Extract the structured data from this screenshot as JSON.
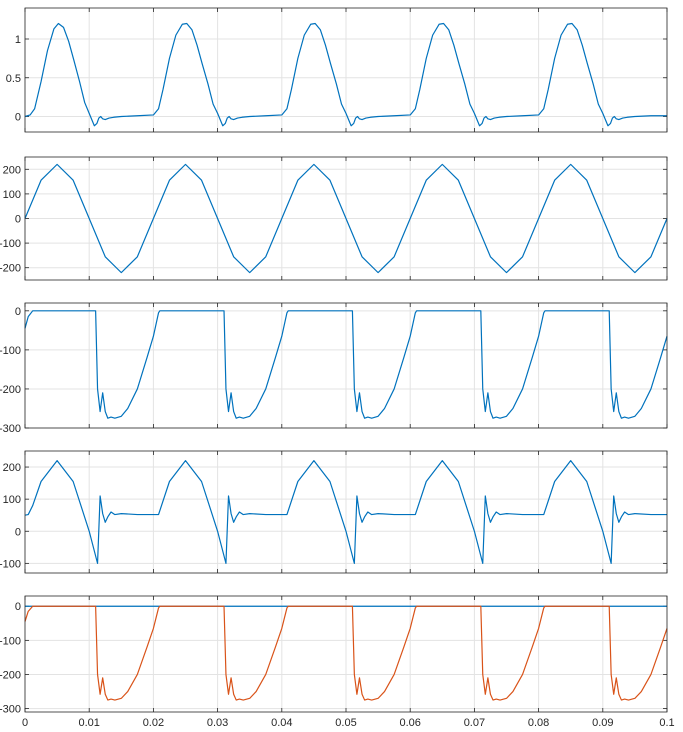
{
  "chart_data": [
    {
      "type": "line",
      "title": "",
      "xlabel": "",
      "ylabel": "",
      "xlim": [
        0,
        0.1
      ],
      "ylim": [
        -0.2,
        1.4
      ],
      "yticks": [
        0,
        0.5,
        1
      ],
      "ytick_labels": [
        "0",
        "0.5",
        "1"
      ],
      "grid": true,
      "series": [
        {
          "color": "#0072BD",
          "x": [
            0,
            0.0008,
            0.0015,
            0.0025,
            0.0035,
            0.0045,
            0.0052,
            0.006,
            0.0068,
            0.0076,
            0.0085,
            0.0093,
            0.01,
            0.0105,
            0.0108,
            0.0112,
            0.0115,
            0.0118,
            0.0121,
            0.0125,
            0.0131,
            0.0138,
            0.015,
            0.0175,
            0.02,
            0.0208,
            0.0215,
            0.0225,
            0.0235,
            0.0245,
            0.0252,
            0.026,
            0.0268,
            0.0276,
            0.0285,
            0.0293,
            0.03,
            0.0305,
            0.0308,
            0.0312,
            0.0315,
            0.0318,
            0.0321,
            0.0325,
            0.0331,
            0.0338,
            0.035,
            0.0375,
            0.04,
            0.0408,
            0.0415,
            0.0425,
            0.0435,
            0.0445,
            0.0452,
            0.046,
            0.0468,
            0.0476,
            0.0485,
            0.0493,
            0.05,
            0.0505,
            0.0508,
            0.0512,
            0.0515,
            0.0518,
            0.0521,
            0.0525,
            0.0531,
            0.0538,
            0.055,
            0.0575,
            0.06,
            0.0608,
            0.0615,
            0.0625,
            0.0635,
            0.0645,
            0.0652,
            0.066,
            0.0668,
            0.0676,
            0.0685,
            0.0693,
            0.07,
            0.0705,
            0.0708,
            0.0712,
            0.0715,
            0.0718,
            0.0721,
            0.0725,
            0.0731,
            0.0738,
            0.075,
            0.0775,
            0.08,
            0.0808,
            0.0815,
            0.0825,
            0.0835,
            0.0845,
            0.0852,
            0.086,
            0.0868,
            0.0876,
            0.0885,
            0.0893,
            0.09,
            0.0905,
            0.0908,
            0.0912,
            0.0915,
            0.0918,
            0.0921,
            0.0925,
            0.0931,
            0.0938,
            0.095,
            0.0975,
            0.1
          ],
          "y": [
            0.0,
            0.02,
            0.1,
            0.45,
            0.85,
            1.13,
            1.2,
            1.15,
            0.97,
            0.73,
            0.45,
            0.18,
            0.04,
            -0.06,
            -0.12,
            -0.09,
            -0.02,
            0.0,
            -0.03,
            -0.04,
            -0.02,
            -0.01,
            0.0,
            0.01,
            0.02,
            0.1,
            0.35,
            0.75,
            1.05,
            1.19,
            1.2,
            1.12,
            0.92,
            0.68,
            0.42,
            0.16,
            0.04,
            -0.06,
            -0.12,
            -0.09,
            -0.02,
            0.0,
            -0.03,
            -0.04,
            -0.02,
            -0.01,
            0.0,
            0.01,
            0.02,
            0.1,
            0.35,
            0.75,
            1.05,
            1.19,
            1.2,
            1.12,
            0.92,
            0.68,
            0.42,
            0.16,
            0.04,
            -0.06,
            -0.12,
            -0.09,
            -0.02,
            0.0,
            -0.03,
            -0.04,
            -0.02,
            -0.01,
            0.0,
            0.01,
            0.02,
            0.1,
            0.35,
            0.75,
            1.05,
            1.19,
            1.2,
            1.12,
            0.92,
            0.68,
            0.42,
            0.16,
            0.04,
            -0.06,
            -0.12,
            -0.09,
            -0.02,
            0.0,
            -0.03,
            -0.04,
            -0.02,
            -0.01,
            0.0,
            0.01,
            0.02,
            0.1,
            0.35,
            0.75,
            1.05,
            1.19,
            1.2,
            1.12,
            0.92,
            0.68,
            0.42,
            0.16,
            0.04,
            -0.06,
            -0.12,
            -0.09,
            -0.02,
            0.0,
            -0.03,
            -0.04,
            -0.02,
            -0.01,
            0.0,
            0.01,
            0.01
          ]
        }
      ]
    },
    {
      "type": "line",
      "title": "",
      "xlabel": "",
      "ylabel": "",
      "xlim": [
        0,
        0.1
      ],
      "ylim": [
        -250,
        250
      ],
      "yticks": [
        200,
        100,
        0,
        -100,
        -200
      ],
      "ytick_labels": [
        "200",
        "100",
        "0",
        "-100",
        "-200"
      ],
      "grid": true,
      "series": [
        {
          "color": "#0072BD",
          "x": [
            0,
            0.0025,
            0.005,
            0.0075,
            0.01,
            0.0125,
            0.015,
            0.0175,
            0.02,
            0.0225,
            0.025,
            0.0275,
            0.03,
            0.0325,
            0.035,
            0.0375,
            0.04,
            0.0425,
            0.045,
            0.0475,
            0.05,
            0.0525,
            0.055,
            0.0575,
            0.06,
            0.0625,
            0.065,
            0.0675,
            0.07,
            0.0725,
            0.075,
            0.0775,
            0.08,
            0.0825,
            0.085,
            0.0875,
            0.09,
            0.0925,
            0.095,
            0.0975,
            0.1
          ],
          "y": [
            0,
            155.6,
            220,
            155.6,
            0,
            -155.6,
            -220,
            -155.6,
            0,
            155.6,
            220,
            155.6,
            0,
            -155.6,
            -220,
            -155.6,
            0,
            155.6,
            220,
            155.6,
            0,
            -155.6,
            -220,
            -155.6,
            0,
            155.6,
            220,
            155.6,
            0,
            -155.6,
            -220,
            -155.6,
            0,
            155.6,
            220,
            155.6,
            0,
            -155.6,
            -220,
            -155.6,
            0
          ]
        }
      ]
    },
    {
      "type": "line",
      "title": "",
      "xlabel": "",
      "ylabel": "",
      "xlim": [
        0,
        0.1
      ],
      "ylim": [
        -300,
        20
      ],
      "yticks": [
        0,
        -100,
        -200,
        -300
      ],
      "ytick_labels": [
        "0",
        "-100",
        "-200",
        "-300"
      ],
      "grid": true,
      "series": [
        {
          "color": "#0072BD",
          "x": [
            0,
            0.0005,
            0.0012,
            0.002,
            0.011,
            0.0113,
            0.0117,
            0.0121,
            0.0125,
            0.0129,
            0.0134,
            0.014,
            0.015,
            0.016,
            0.0175,
            0.019,
            0.02,
            0.0208,
            0.021,
            0.031,
            0.0313,
            0.0317,
            0.0321,
            0.0325,
            0.0329,
            0.0334,
            0.034,
            0.035,
            0.036,
            0.0375,
            0.039,
            0.04,
            0.0408,
            0.041,
            0.051,
            0.0513,
            0.0517,
            0.0521,
            0.0525,
            0.0529,
            0.0534,
            0.054,
            0.055,
            0.056,
            0.0575,
            0.059,
            0.06,
            0.0608,
            0.061,
            0.071,
            0.0713,
            0.0717,
            0.0721,
            0.0725,
            0.0729,
            0.0734,
            0.074,
            0.075,
            0.076,
            0.0775,
            0.079,
            0.08,
            0.0808,
            0.081,
            0.091,
            0.0913,
            0.0917,
            0.0921,
            0.0925,
            0.0929,
            0.0934,
            0.094,
            0.095,
            0.096,
            0.0975,
            0.099,
            0.1
          ],
          "y": [
            -45,
            -15,
            0,
            0,
            0,
            -200,
            -258,
            -210,
            -258,
            -275,
            -272,
            -275,
            -270,
            -250,
            -200,
            -120,
            -65,
            -5,
            0,
            0,
            -200,
            -258,
            -210,
            -258,
            -275,
            -272,
            -275,
            -270,
            -250,
            -200,
            -120,
            -65,
            -5,
            0,
            0,
            -200,
            -258,
            -210,
            -258,
            -275,
            -272,
            -275,
            -270,
            -250,
            -200,
            -120,
            -65,
            -5,
            0,
            0,
            -200,
            -258,
            -210,
            -258,
            -275,
            -272,
            -275,
            -270,
            -250,
            -200,
            -120,
            -65,
            -5,
            0,
            0,
            -200,
            -258,
            -210,
            -258,
            -275,
            -272,
            -275,
            -270,
            -250,
            -200,
            -120,
            -65
          ]
        }
      ]
    },
    {
      "type": "line",
      "title": "",
      "xlabel": "",
      "ylabel": "",
      "xlim": [
        0,
        0.1
      ],
      "ylim": [
        -130,
        250
      ],
      "yticks": [
        200,
        100,
        0,
        -100
      ],
      "ytick_labels": [
        "200",
        "100",
        "0",
        "-100"
      ],
      "grid": true,
      "series": [
        {
          "color": "#0072BD",
          "x": [
            0,
            0.0005,
            0.0012,
            0.0025,
            0.005,
            0.0075,
            0.01,
            0.0113,
            0.0117,
            0.0121,
            0.0125,
            0.0129,
            0.0134,
            0.014,
            0.015,
            0.0175,
            0.0208,
            0.0225,
            0.025,
            0.0275,
            0.03,
            0.0313,
            0.0317,
            0.0321,
            0.0325,
            0.0329,
            0.0334,
            0.034,
            0.035,
            0.0375,
            0.0408,
            0.0425,
            0.045,
            0.0475,
            0.05,
            0.0513,
            0.0517,
            0.0521,
            0.0525,
            0.0529,
            0.0534,
            0.054,
            0.055,
            0.0575,
            0.0608,
            0.0625,
            0.065,
            0.0675,
            0.07,
            0.0713,
            0.0717,
            0.0721,
            0.0725,
            0.0729,
            0.0734,
            0.074,
            0.075,
            0.0775,
            0.0808,
            0.0825,
            0.085,
            0.0875,
            0.09,
            0.0913,
            0.0917,
            0.0921,
            0.0925,
            0.0929,
            0.0934,
            0.094,
            0.095,
            0.0975,
            0.1
          ],
          "y": [
            50,
            52,
            80,
            155,
            220,
            155,
            0,
            -100,
            110,
            55,
            28,
            45,
            60,
            52,
            55,
            52,
            52,
            155,
            220,
            155,
            0,
            -100,
            110,
            55,
            28,
            45,
            60,
            52,
            55,
            52,
            52,
            155,
            220,
            155,
            0,
            -100,
            110,
            55,
            28,
            45,
            60,
            52,
            55,
            52,
            52,
            155,
            220,
            155,
            0,
            -100,
            110,
            55,
            28,
            45,
            60,
            52,
            55,
            52,
            52,
            155,
            220,
            155,
            0,
            -100,
            110,
            55,
            28,
            45,
            60,
            52,
            55,
            52,
            52
          ]
        }
      ]
    },
    {
      "type": "line",
      "title": "",
      "xlabel": "",
      "ylabel": "",
      "xlim": [
        0,
        0.1
      ],
      "ylim": [
        -310,
        30
      ],
      "yticks": [
        0,
        -100,
        -200,
        -300
      ],
      "ytick_labels": [
        "0",
        "-100",
        "-200",
        "-300"
      ],
      "xticks": [
        0,
        0.01,
        0.02,
        0.03,
        0.04,
        0.05,
        0.06,
        0.07,
        0.08,
        0.09,
        0.1
      ],
      "xtick_labels": [
        "0",
        "0.01",
        "0.02",
        "0.03",
        "0.04",
        "0.05",
        "0.06",
        "0.07",
        "0.08",
        "0.09",
        "0.1"
      ],
      "grid": true,
      "series": [
        {
          "color": "#0072BD",
          "x": [
            0,
            0.1
          ],
          "y": [
            0,
            0
          ]
        },
        {
          "color": "#D95319",
          "x": [
            0,
            0.0005,
            0.0012,
            0.002,
            0.011,
            0.0113,
            0.0117,
            0.0121,
            0.0125,
            0.0129,
            0.0134,
            0.014,
            0.015,
            0.016,
            0.0175,
            0.019,
            0.02,
            0.0208,
            0.021,
            0.031,
            0.0313,
            0.0317,
            0.0321,
            0.0325,
            0.0329,
            0.0334,
            0.034,
            0.035,
            0.036,
            0.0375,
            0.039,
            0.04,
            0.0408,
            0.041,
            0.051,
            0.0513,
            0.0517,
            0.0521,
            0.0525,
            0.0529,
            0.0534,
            0.054,
            0.055,
            0.056,
            0.0575,
            0.059,
            0.06,
            0.0608,
            0.061,
            0.071,
            0.0713,
            0.0717,
            0.0721,
            0.0725,
            0.0729,
            0.0734,
            0.074,
            0.075,
            0.076,
            0.0775,
            0.079,
            0.08,
            0.0808,
            0.081,
            0.091,
            0.0913,
            0.0917,
            0.0921,
            0.0925,
            0.0929,
            0.0934,
            0.094,
            0.095,
            0.096,
            0.0975,
            0.099,
            0.1
          ],
          "y": [
            -45,
            -15,
            0,
            0,
            0,
            -200,
            -258,
            -210,
            -258,
            -275,
            -272,
            -275,
            -270,
            -250,
            -200,
            -120,
            -65,
            -5,
            0,
            0,
            -200,
            -258,
            -210,
            -258,
            -275,
            -272,
            -275,
            -270,
            -250,
            -200,
            -120,
            -65,
            -5,
            0,
            0,
            -200,
            -258,
            -210,
            -258,
            -275,
            -272,
            -275,
            -270,
            -250,
            -200,
            -120,
            -65,
            -5,
            0,
            0,
            -200,
            -258,
            -210,
            -258,
            -275,
            -272,
            -275,
            -270,
            -250,
            -200,
            -120,
            -65,
            -5,
            0,
            0,
            -200,
            -258,
            -210,
            -258,
            -275,
            -272,
            -275,
            -270,
            -250,
            -200,
            -120,
            -65
          ]
        }
      ]
    }
  ]
}
